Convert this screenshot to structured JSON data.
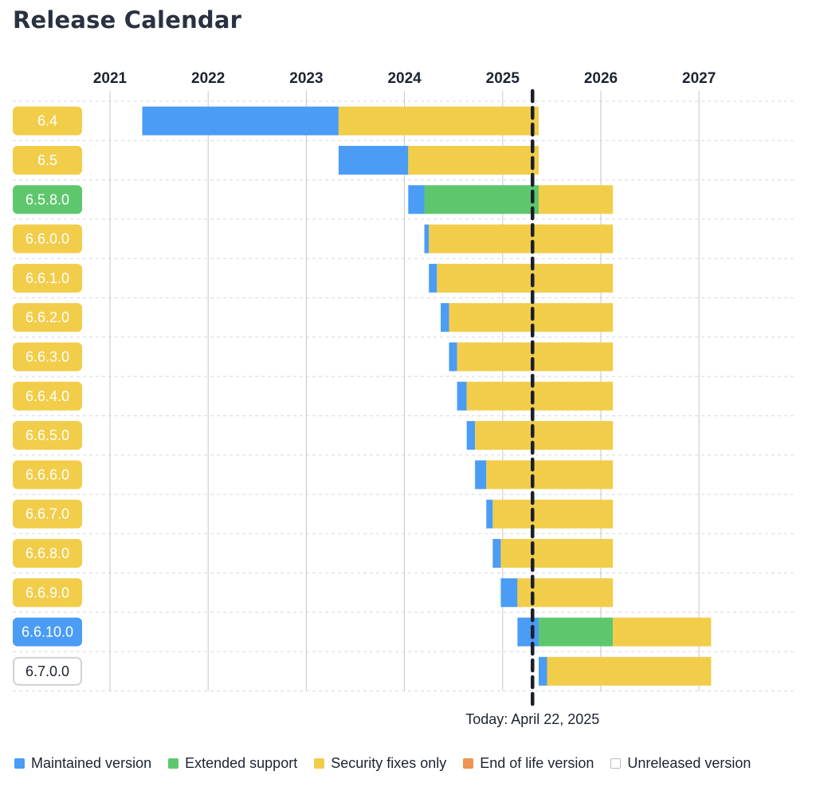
{
  "title": "Release Calendar",
  "legend": [
    {
      "label": "Maintained version",
      "color": "#4a9cf5",
      "status": "maintained"
    },
    {
      "label": "Extended support",
      "color": "#5ec76e",
      "status": "extended"
    },
    {
      "label": "Security fixes only",
      "color": "#f2cd4a",
      "status": "security"
    },
    {
      "label": "End of life version",
      "color": "#ee9350",
      "status": "eol"
    },
    {
      "label": "Unreleased version",
      "color": "#ffffff",
      "status": "unreleased"
    }
  ],
  "chart_data": {
    "type": "gantt",
    "title": "Release Calendar",
    "x_ticks": [
      "2021",
      "2022",
      "2023",
      "2024",
      "2025",
      "2026",
      "2027"
    ],
    "xlim": [
      "2021-01-01",
      "2027-12-31"
    ],
    "today": {
      "date": "2025-04-22",
      "label": "Today: April 22, 2025"
    },
    "colors": {
      "maintained": "#4a9cf5",
      "extended": "#5ec76e",
      "security": "#f2cd4a",
      "eol": "#ee9350",
      "unreleased": "#ffffff"
    },
    "releases": [
      {
        "version": "6.4",
        "status": "security",
        "segments": [
          {
            "type": "maintained",
            "start": "2021-05-01",
            "end": "2023-05-01"
          },
          {
            "type": "security",
            "start": "2023-05-01",
            "end": "2025-05-15"
          }
        ]
      },
      {
        "version": "6.5",
        "status": "security",
        "segments": [
          {
            "type": "maintained",
            "start": "2023-05-01",
            "end": "2024-01-15"
          },
          {
            "type": "security",
            "start": "2024-01-15",
            "end": "2025-05-15"
          }
        ]
      },
      {
        "version": "6.5.8.0",
        "status": "extended",
        "segments": [
          {
            "type": "maintained",
            "start": "2024-01-15",
            "end": "2024-03-15"
          },
          {
            "type": "extended",
            "start": "2024-03-15",
            "end": "2025-05-15"
          },
          {
            "type": "security",
            "start": "2025-05-15",
            "end": "2026-02-15"
          }
        ]
      },
      {
        "version": "6.6.0.0",
        "status": "security",
        "segments": [
          {
            "type": "maintained",
            "start": "2024-03-15",
            "end": "2024-04-01"
          },
          {
            "type": "security",
            "start": "2024-04-01",
            "end": "2026-02-15"
          }
        ]
      },
      {
        "version": "6.6.1.0",
        "status": "security",
        "segments": [
          {
            "type": "maintained",
            "start": "2024-04-01",
            "end": "2024-05-01"
          },
          {
            "type": "security",
            "start": "2024-05-01",
            "end": "2026-02-15"
          }
        ]
      },
      {
        "version": "6.6.2.0",
        "status": "security",
        "segments": [
          {
            "type": "maintained",
            "start": "2024-05-15",
            "end": "2024-06-15"
          },
          {
            "type": "security",
            "start": "2024-06-15",
            "end": "2026-02-15"
          }
        ]
      },
      {
        "version": "6.6.3.0",
        "status": "security",
        "segments": [
          {
            "type": "maintained",
            "start": "2024-06-15",
            "end": "2024-07-15"
          },
          {
            "type": "security",
            "start": "2024-07-15",
            "end": "2026-02-15"
          }
        ]
      },
      {
        "version": "6.6.4.0",
        "status": "security",
        "segments": [
          {
            "type": "maintained",
            "start": "2024-07-15",
            "end": "2024-08-20"
          },
          {
            "type": "security",
            "start": "2024-08-20",
            "end": "2026-02-15"
          }
        ]
      },
      {
        "version": "6.6.5.0",
        "status": "security",
        "segments": [
          {
            "type": "maintained",
            "start": "2024-08-20",
            "end": "2024-09-20"
          },
          {
            "type": "security",
            "start": "2024-09-20",
            "end": "2026-02-15"
          }
        ]
      },
      {
        "version": "6.6.6.0",
        "status": "security",
        "segments": [
          {
            "type": "maintained",
            "start": "2024-09-20",
            "end": "2024-11-01"
          },
          {
            "type": "security",
            "start": "2024-11-01",
            "end": "2026-02-15"
          }
        ]
      },
      {
        "version": "6.6.7.0",
        "status": "security",
        "segments": [
          {
            "type": "maintained",
            "start": "2024-11-01",
            "end": "2024-11-25"
          },
          {
            "type": "security",
            "start": "2024-11-25",
            "end": "2026-02-15"
          }
        ]
      },
      {
        "version": "6.6.8.0",
        "status": "security",
        "segments": [
          {
            "type": "maintained",
            "start": "2024-11-25",
            "end": "2024-12-25"
          },
          {
            "type": "security",
            "start": "2024-12-25",
            "end": "2026-02-15"
          }
        ]
      },
      {
        "version": "6.6.9.0",
        "status": "security",
        "segments": [
          {
            "type": "maintained",
            "start": "2024-12-25",
            "end": "2025-02-25"
          },
          {
            "type": "security",
            "start": "2025-02-25",
            "end": "2026-02-15"
          }
        ]
      },
      {
        "version": "6.6.10.0",
        "status": "maintained",
        "segments": [
          {
            "type": "maintained",
            "start": "2025-02-25",
            "end": "2025-05-15"
          },
          {
            "type": "extended",
            "start": "2025-05-15",
            "end": "2026-02-15"
          },
          {
            "type": "security",
            "start": "2026-02-15",
            "end": "2027-02-15"
          }
        ]
      },
      {
        "version": "6.7.0.0",
        "status": "unreleased",
        "segments": [
          {
            "type": "maintained",
            "start": "2025-05-15",
            "end": "2025-06-15"
          },
          {
            "type": "security",
            "start": "2025-06-15",
            "end": "2027-02-15"
          }
        ]
      }
    ]
  }
}
